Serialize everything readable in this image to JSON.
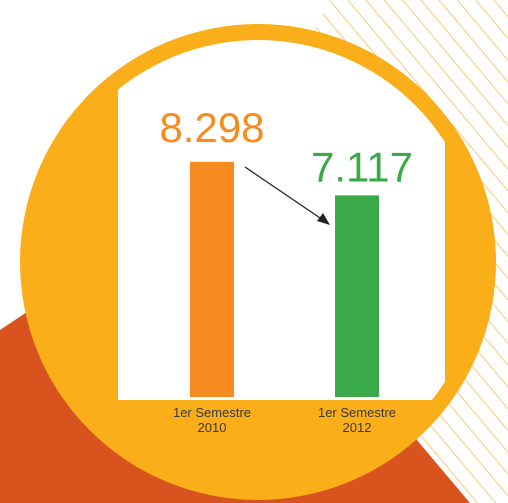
{
  "chart_data": {
    "type": "bar",
    "categories": [
      "1er Semestre 2010",
      "1er Semestre 2012"
    ],
    "values": [
      8298,
      7117
    ],
    "value_labels": [
      "8.298",
      "7.117"
    ],
    "colors": [
      "#f68b1f",
      "#3aaa49"
    ],
    "ylim": [
      0,
      9000
    ]
  }
}
